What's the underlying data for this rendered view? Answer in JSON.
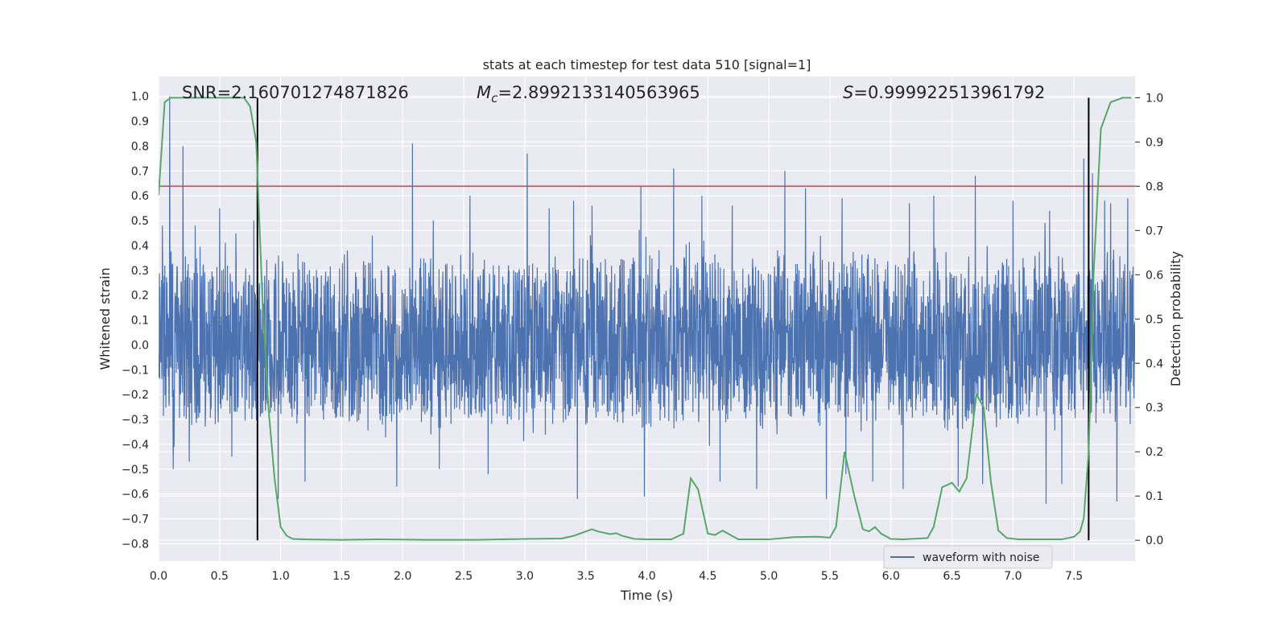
{
  "chart_data": {
    "type": "line",
    "title": "stats at each timestep for test data 510 [signal=1]",
    "xlabel": "Time (s)",
    "ylabel": "Whitened strain",
    "ylabel_right": "Detection probability",
    "xlim": [
      0.0,
      8.0
    ],
    "ylim": [
      -0.87,
      1.08
    ],
    "ylim_right": [
      -0.047,
      1.048
    ],
    "x_ticks": [
      "0.0",
      "0.5",
      "1.0",
      "1.5",
      "2.0",
      "2.5",
      "3.0",
      "3.5",
      "4.0",
      "4.5",
      "5.0",
      "5.5",
      "6.0",
      "6.5",
      "7.0",
      "7.5"
    ],
    "y_ticks": [
      "1.0",
      "0.9",
      "0.8",
      "0.7",
      "0.6",
      "0.5",
      "0.4",
      "0.3",
      "0.2",
      "0.1",
      "0.0",
      "−0.1",
      "−0.2",
      "−0.3",
      "−0.4",
      "−0.5",
      "−0.6",
      "−0.7",
      "−0.8"
    ],
    "y_ticks_right": [
      "1.0",
      "0.9",
      "0.8",
      "0.7",
      "0.6",
      "0.5",
      "0.4",
      "0.3",
      "0.2",
      "0.1",
      "0.0"
    ],
    "annotations": {
      "snr": "SNR=2.160701274871826",
      "mc_symbol": "M",
      "mc_sub": "c",
      "mc_value": "=2.8992133140563965",
      "s_symbol": "S",
      "s_value": "=0.999922513961792"
    },
    "threshold_right": 0.8,
    "vertical_lines_x": [
      0.81,
      7.62
    ],
    "legend": {
      "label": "waveform with noise",
      "placement": "lower-right"
    },
    "waveform": {
      "name": "waveform with noise",
      "typical_max": 0.4,
      "typical_min": -0.35,
      "spikes": [
        [
          0.03,
          0.48
        ],
        [
          0.09,
          1.0
        ],
        [
          0.2,
          0.8
        ],
        [
          0.3,
          0.48
        ],
        [
          0.5,
          0.55
        ],
        [
          0.78,
          0.5
        ],
        [
          0.12,
          -0.5
        ],
        [
          0.25,
          -0.47
        ],
        [
          0.6,
          -0.45
        ],
        [
          2.08,
          0.81
        ],
        [
          1.75,
          0.44
        ],
        [
          2.25,
          0.5
        ],
        [
          2.55,
          0.6
        ],
        [
          3.02,
          0.77
        ],
        [
          3.2,
          0.55
        ],
        [
          3.4,
          0.58
        ],
        [
          3.55,
          0.56
        ],
        [
          3.95,
          0.64
        ],
        [
          4.22,
          0.71
        ],
        [
          4.45,
          0.6
        ],
        [
          4.7,
          0.56
        ],
        [
          4.9,
          0.65
        ],
        [
          5.13,
          0.7
        ],
        [
          5.3,
          0.63
        ],
        [
          5.6,
          0.59
        ],
        [
          5.85,
          0.58
        ],
        [
          6.15,
          0.57
        ],
        [
          6.35,
          0.6
        ],
        [
          6.69,
          0.68
        ],
        [
          7.0,
          0.58
        ],
        [
          7.3,
          0.54
        ],
        [
          7.58,
          0.75
        ],
        [
          7.65,
          0.69
        ],
        [
          7.75,
          0.58
        ],
        [
          7.8,
          0.57
        ],
        [
          7.94,
          0.59
        ],
        [
          0.98,
          -0.62
        ],
        [
          1.2,
          -0.55
        ],
        [
          1.95,
          -0.57
        ],
        [
          2.3,
          -0.5
        ],
        [
          2.7,
          -0.52
        ],
        [
          3.43,
          -0.62
        ],
        [
          3.98,
          -0.61
        ],
        [
          4.6,
          -0.55
        ],
        [
          4.9,
          -0.58
        ],
        [
          5.47,
          -0.62
        ],
        [
          5.63,
          -0.52
        ],
        [
          5.85,
          -0.55
        ],
        [
          6.1,
          -0.58
        ],
        [
          6.55,
          -0.57
        ],
        [
          6.75,
          -0.56
        ],
        [
          7.27,
          -0.64
        ],
        [
          7.4,
          -0.56
        ],
        [
          7.85,
          -0.63
        ]
      ]
    },
    "probability": {
      "name": "detection probability",
      "x": [
        0.0,
        0.05,
        0.1,
        0.2,
        0.4,
        0.6,
        0.7,
        0.75,
        0.8,
        0.85,
        0.9,
        0.95,
        1.0,
        1.05,
        1.1,
        1.2,
        1.5,
        1.8,
        2.2,
        2.6,
        3.0,
        3.3,
        3.4,
        3.5,
        3.55,
        3.6,
        3.7,
        3.75,
        3.8,
        3.9,
        4.0,
        4.2,
        4.3,
        4.36,
        4.42,
        4.5,
        4.56,
        4.62,
        4.75,
        5.0,
        5.2,
        5.4,
        5.5,
        5.55,
        5.62,
        5.7,
        5.77,
        5.82,
        5.87,
        5.92,
        6.0,
        6.1,
        6.3,
        6.35,
        6.42,
        6.5,
        6.56,
        6.62,
        6.7,
        6.76,
        6.82,
        6.88,
        6.95,
        7.05,
        7.2,
        7.4,
        7.5,
        7.55,
        7.58,
        7.62,
        7.66,
        7.72,
        7.8,
        7.9,
        7.97
      ],
      "y": [
        0.78,
        0.99,
        1.0,
        1.0,
        1.0,
        1.0,
        1.0,
        0.98,
        0.9,
        0.55,
        0.3,
        0.14,
        0.03,
        0.01,
        0.003,
        0.002,
        0.001,
        0.002,
        0.001,
        0.001,
        0.003,
        0.004,
        0.01,
        0.02,
        0.025,
        0.02,
        0.014,
        0.016,
        0.01,
        0.003,
        0.002,
        0.002,
        0.015,
        0.14,
        0.115,
        0.015,
        0.012,
        0.022,
        0.002,
        0.002,
        0.007,
        0.008,
        0.006,
        0.03,
        0.2,
        0.1,
        0.025,
        0.02,
        0.03,
        0.015,
        0.003,
        0.002,
        0.005,
        0.03,
        0.12,
        0.13,
        0.11,
        0.14,
        0.33,
        0.3,
        0.13,
        0.022,
        0.005,
        0.002,
        0.002,
        0.002,
        0.008,
        0.02,
        0.05,
        0.2,
        0.6,
        0.93,
        0.99,
        1.0,
        1.0
      ]
    },
    "colors": {
      "waveform": "#4c72b0",
      "probability": "#55a868",
      "threshold": "#c44e52",
      "vline": "#000000",
      "plot_background": "#eaeaf2",
      "grid": "#ffffff"
    }
  }
}
